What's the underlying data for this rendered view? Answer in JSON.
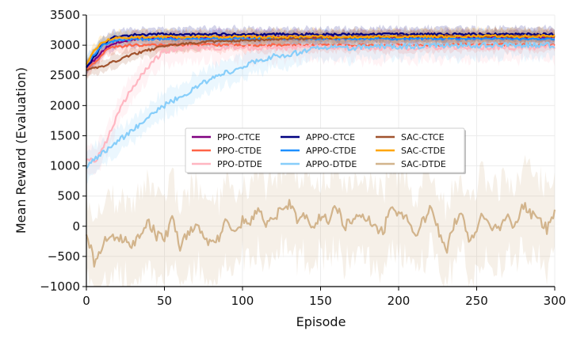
{
  "chart_data": {
    "type": "line",
    "title": "",
    "xlabel": "Episode",
    "ylabel": "Mean Reward (Evaluation)",
    "xlim": [
      0,
      300
    ],
    "ylim": [
      -1000,
      3500
    ],
    "xticks": [
      "0",
      "50",
      "100",
      "150",
      "200",
      "250",
      "300"
    ],
    "xtick_values": [
      0,
      50,
      100,
      150,
      200,
      250,
      300
    ],
    "yticks": [
      "−1000",
      "−500",
      "0",
      "500",
      "1000",
      "1500",
      "2000",
      "2500",
      "3000",
      "3500"
    ],
    "ytick_values": [
      -1000,
      -500,
      0,
      500,
      1000,
      1500,
      2000,
      2500,
      3000,
      3500
    ],
    "grid": true,
    "legend_position": "center",
    "legend_columns": 3,
    "series": [
      {
        "name": "PPO-CTCE",
        "color": "#800080",
        "x": [
          0,
          5,
          10,
          15,
          20,
          30,
          40,
          60,
          80,
          100,
          150,
          200,
          250,
          300
        ],
        "y": [
          2650,
          2750,
          2900,
          3000,
          3050,
          3100,
          3120,
          3120,
          3130,
          3130,
          3130,
          3130,
          3130,
          3130
        ]
      },
      {
        "name": "PPO-CTDE",
        "color": "#ff6347",
        "x": [
          0,
          5,
          10,
          15,
          20,
          30,
          40,
          60,
          80,
          100,
          150,
          200,
          250,
          300
        ],
        "y": [
          2600,
          2700,
          2850,
          2950,
          2980,
          3000,
          3000,
          3000,
          3010,
          3000,
          3000,
          3000,
          3010,
          3000
        ]
      },
      {
        "name": "PPO-DTDE",
        "color": "#ffb6c1",
        "x": [
          0,
          5,
          10,
          15,
          20,
          25,
          30,
          35,
          40,
          45,
          50,
          60,
          80,
          100,
          150,
          200,
          250,
          300
        ],
        "y": [
          1150,
          1050,
          1250,
          1550,
          1850,
          2100,
          2300,
          2500,
          2650,
          2800,
          2900,
          2950,
          2960,
          2960,
          2960,
          2960,
          2970,
          2960
        ]
      },
      {
        "name": "APPO-CTCE",
        "color": "#000080",
        "x": [
          0,
          5,
          10,
          15,
          20,
          30,
          40,
          60,
          80,
          100,
          150,
          200,
          250,
          300
        ],
        "y": [
          2650,
          2800,
          3000,
          3100,
          3150,
          3170,
          3180,
          3180,
          3180,
          3180,
          3180,
          3180,
          3180,
          3180
        ]
      },
      {
        "name": "APPO-CTDE",
        "color": "#1e90ff",
        "x": [
          0,
          5,
          10,
          15,
          20,
          30,
          40,
          60,
          80,
          100,
          150,
          200,
          250,
          300
        ],
        "y": [
          2700,
          2850,
          3000,
          3050,
          3080,
          3100,
          3100,
          3110,
          3110,
          3110,
          3110,
          3110,
          3110,
          3110
        ]
      },
      {
        "name": "APPO-DTDE",
        "color": "#87cefa",
        "x": [
          0,
          10,
          20,
          30,
          40,
          50,
          60,
          70,
          80,
          90,
          100,
          110,
          120,
          130,
          140,
          150,
          200,
          250,
          300
        ],
        "y": [
          1000,
          1200,
          1400,
          1600,
          1800,
          2000,
          2150,
          2300,
          2450,
          2550,
          2650,
          2750,
          2820,
          2850,
          2900,
          2950,
          2980,
          3000,
          3000
        ]
      },
      {
        "name": "SAC-CTCE",
        "color": "#a0522d",
        "x": [
          0,
          5,
          10,
          15,
          20,
          25,
          30,
          40,
          50,
          60,
          80,
          100,
          150,
          200,
          250,
          300
        ],
        "y": [
          2600,
          2620,
          2650,
          2700,
          2750,
          2800,
          2850,
          2920,
          2980,
          3020,
          3060,
          3080,
          3120,
          3150,
          3150,
          3150
        ]
      },
      {
        "name": "SAC-CTDE",
        "color": "#ffa500",
        "x": [
          0,
          5,
          10,
          15,
          20,
          30,
          40,
          60,
          80,
          100,
          150,
          200,
          250,
          300
        ],
        "y": [
          2700,
          2900,
          3050,
          3100,
          3120,
          3130,
          3140,
          3140,
          3140,
          3140,
          3140,
          3140,
          3150,
          3150
        ]
      },
      {
        "name": "SAC-DTDE",
        "color": "#d2b48c",
        "x": [
          0,
          5,
          10,
          15,
          20,
          25,
          30,
          35,
          40,
          45,
          50,
          55,
          60,
          65,
          70,
          75,
          80,
          85,
          90,
          95,
          100,
          105,
          110,
          115,
          120,
          125,
          130,
          135,
          140,
          145,
          150,
          155,
          160,
          165,
          170,
          175,
          180,
          185,
          190,
          195,
          200,
          205,
          210,
          215,
          220,
          225,
          230,
          235,
          240,
          245,
          250,
          255,
          260,
          265,
          270,
          275,
          280,
          285,
          290,
          295,
          300
        ],
        "y": [
          -50,
          -600,
          -300,
          -150,
          -250,
          -200,
          -300,
          -100,
          50,
          -150,
          -200,
          100,
          -350,
          -100,
          0,
          -150,
          -300,
          -200,
          150,
          -100,
          100,
          50,
          300,
          0,
          150,
          250,
          400,
          100,
          200,
          0,
          150,
          100,
          350,
          0,
          100,
          250,
          100,
          0,
          -100,
          300,
          200,
          150,
          -200,
          50,
          300,
          0,
          -450,
          0,
          200,
          -250,
          0,
          200,
          -100,
          0,
          150,
          0,
          350,
          200,
          100,
          -50,
          200
        ]
      }
    ]
  }
}
